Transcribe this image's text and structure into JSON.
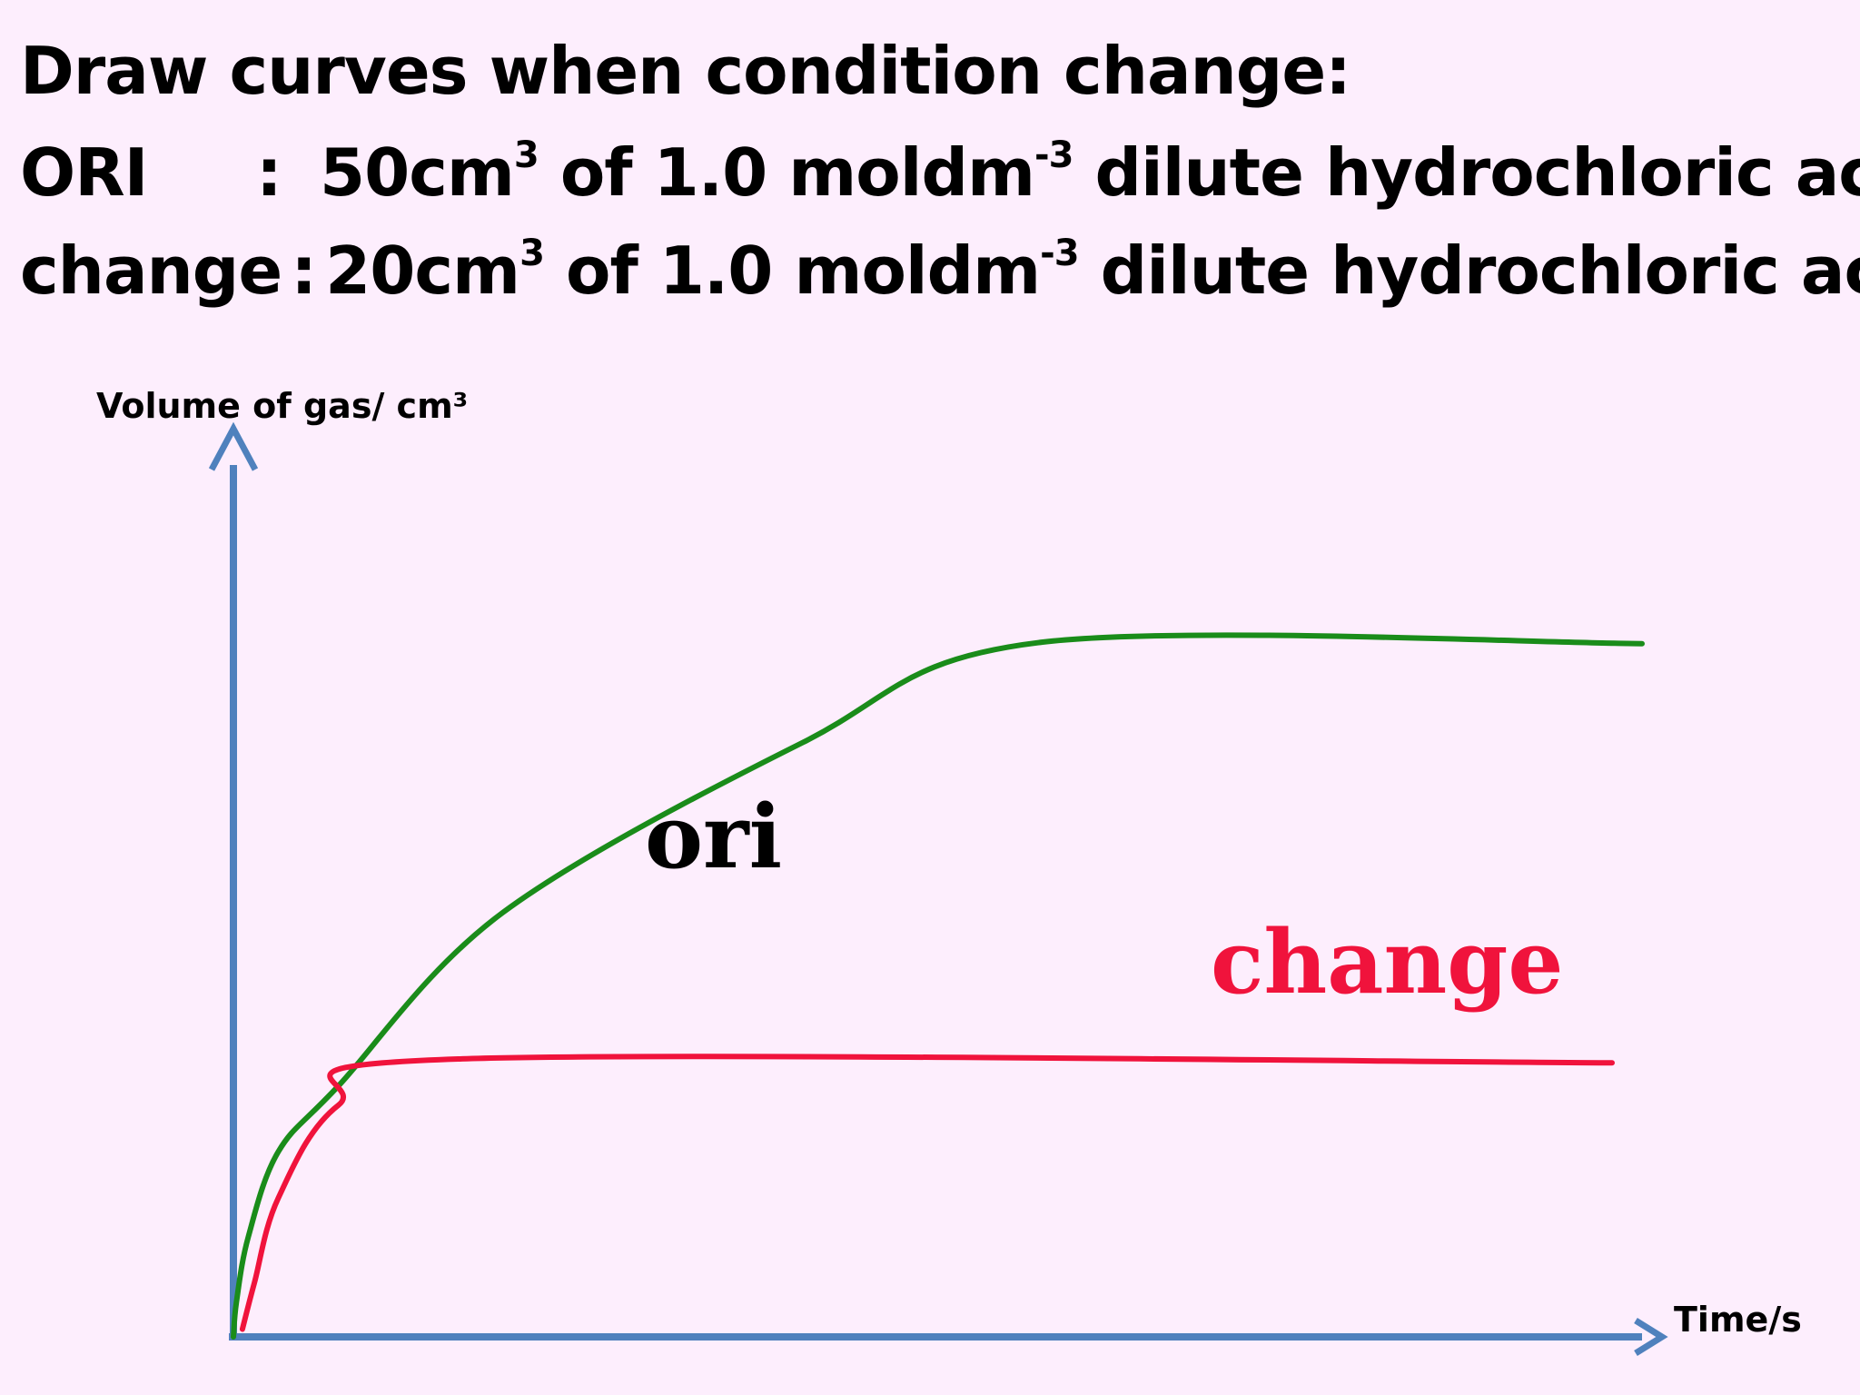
{
  "heading": "Draw curves when condition change:",
  "conditions": {
    "ori": {
      "tag": "ORI",
      "separator": ":",
      "vol_prefix": "50cm",
      "vol_exp": "3",
      "conc_prefix": " of 1.0 moldm",
      "conc_exp": "-3",
      "rest": " dilute hydrochloric acid"
    },
    "change": {
      "tag": "change",
      "separator": ":",
      "vol_prefix": "20cm",
      "vol_exp": "3",
      "conc_prefix": " of 1.0 moldm",
      "conc_exp": "-3",
      "rest": " dilute hydrochloric acid"
    }
  },
  "chart_data": {
    "type": "line",
    "ylabel": "Volume of gas/ cm³",
    "xlabel": "Time/s",
    "grid": false,
    "series_colors": {
      "ori": "#1a8c1a",
      "change": "#f0133c",
      "axis": "#4f81bd"
    },
    "series": [
      {
        "name": "ori",
        "label_color": "#000000",
        "points": [
          [
            0,
            0
          ],
          [
            0.1,
            0.45
          ],
          [
            0.5,
            1.3
          ],
          [
            1.5,
            2.4
          ],
          [
            3.5,
            3.25
          ],
          [
            9,
            5.5
          ],
          [
            19,
            7.7
          ],
          [
            27,
            9.0
          ],
          [
            47,
            8.98
          ]
        ]
      },
      {
        "name": "change",
        "label_color": "#f0133c",
        "points": [
          [
            0.3,
            0.1
          ],
          [
            0.7,
            0.7
          ],
          [
            1.5,
            1.8
          ],
          [
            3.5,
            3.0
          ],
          [
            7.5,
            3.6
          ],
          [
            46,
            3.55
          ]
        ]
      }
    ]
  }
}
